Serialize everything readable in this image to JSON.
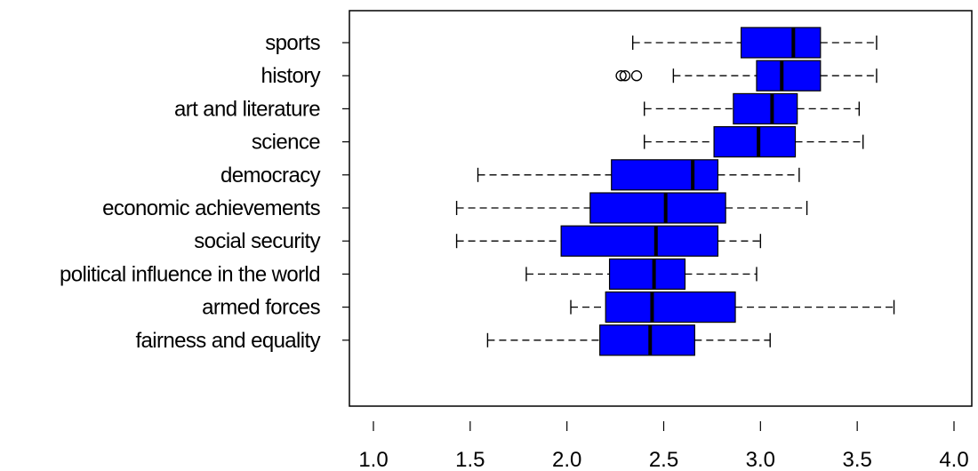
{
  "chart_data": {
    "type": "boxplot",
    "orientation": "horizontal",
    "title": "",
    "xlabel": "",
    "ylabel": "",
    "xlim": [
      0.9,
      4.1
    ],
    "xticks": [
      1.0,
      1.5,
      2.0,
      2.5,
      3.0,
      3.5,
      4.0
    ],
    "xtick_labels": [
      "1.0",
      "1.5",
      "2.0",
      "2.5",
      "3.0",
      "3.5",
      "4.0"
    ],
    "grid": false,
    "box_color": "#0000ff",
    "outlier_style": "open-circle",
    "categories": [
      "sports",
      "history",
      "art and literature",
      "science",
      "democracy",
      "economic achievements",
      "social security",
      "political influence in the world",
      "armed forces",
      "fairness and equality"
    ],
    "boxes": [
      {
        "label": "sports",
        "whisker_low": 2.34,
        "q1": 2.9,
        "median": 3.17,
        "q3": 3.31,
        "whisker_high": 3.6,
        "outliers": []
      },
      {
        "label": "history",
        "whisker_low": 2.55,
        "q1": 2.98,
        "median": 3.11,
        "q3": 3.31,
        "whisker_high": 3.6,
        "outliers": [
          2.28,
          2.3,
          2.36
        ]
      },
      {
        "label": "art and literature",
        "whisker_low": 2.4,
        "q1": 2.86,
        "median": 3.06,
        "q3": 3.19,
        "whisker_high": 3.51,
        "outliers": []
      },
      {
        "label": "science",
        "whisker_low": 2.4,
        "q1": 2.76,
        "median": 2.99,
        "q3": 3.18,
        "whisker_high": 3.53,
        "outliers": []
      },
      {
        "label": "democracy",
        "whisker_low": 1.54,
        "q1": 2.23,
        "median": 2.65,
        "q3": 2.78,
        "whisker_high": 3.2,
        "outliers": []
      },
      {
        "label": "economic achievements",
        "whisker_low": 1.43,
        "q1": 2.12,
        "median": 2.51,
        "q3": 2.82,
        "whisker_high": 3.24,
        "outliers": []
      },
      {
        "label": "social security",
        "whisker_low": 1.43,
        "q1": 1.97,
        "median": 2.46,
        "q3": 2.78,
        "whisker_high": 3.0,
        "outliers": []
      },
      {
        "label": "political influence in the world",
        "whisker_low": 1.79,
        "q1": 2.22,
        "median": 2.45,
        "q3": 2.61,
        "whisker_high": 2.98,
        "outliers": []
      },
      {
        "label": "armed forces",
        "whisker_low": 2.02,
        "q1": 2.2,
        "median": 2.44,
        "q3": 2.87,
        "whisker_high": 3.69,
        "outliers": []
      },
      {
        "label": "fairness and equality",
        "whisker_low": 1.59,
        "q1": 2.17,
        "median": 2.43,
        "q3": 2.66,
        "whisker_high": 3.05,
        "outliers": []
      }
    ]
  }
}
